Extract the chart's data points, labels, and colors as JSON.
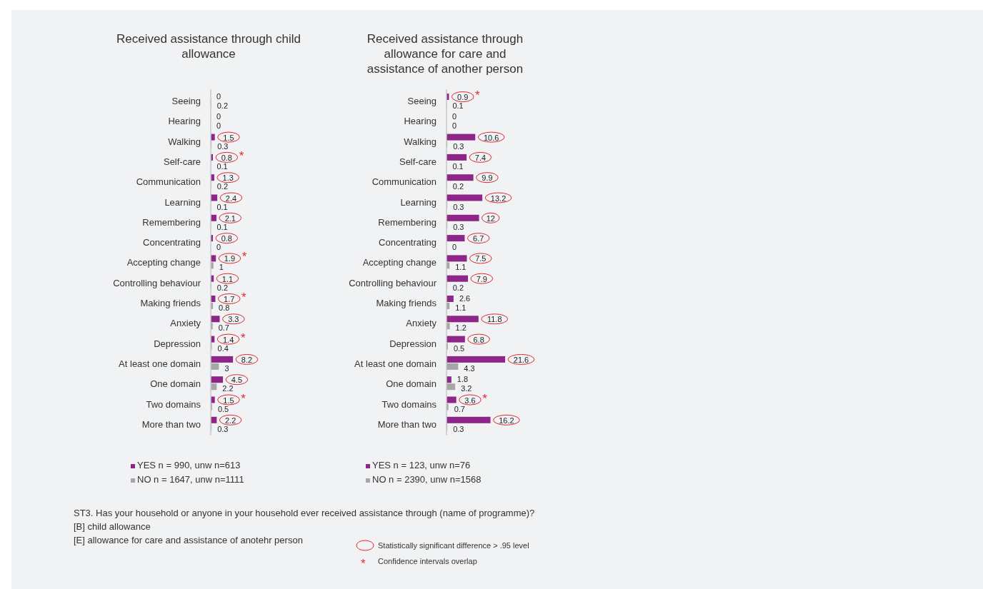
{
  "chart_data": [
    {
      "type": "bar",
      "orientation": "horizontal",
      "title": "Received assistance through child allowance",
      "legend": "bottom",
      "categories": [
        "Seeing",
        "Hearing",
        "Walking",
        "Self-care",
        "Communication",
        "Learning",
        "Remembering",
        "Concentrating",
        "Accepting change",
        "Controlling behaviour",
        "Making friends",
        "Anxiety",
        "Depression",
        "At least one domain",
        "One domain",
        "Two domains",
        "More than two"
      ],
      "series": [
        {
          "name": "YES n = 990, unw n=613",
          "color": "#8e2589",
          "values": [
            0,
            0,
            1.5,
            0.8,
            1.3,
            2.4,
            2.1,
            0.8,
            1.9,
            1.1,
            1.7,
            3.3,
            1.4,
            8.2,
            4.5,
            1.5,
            2.2
          ],
          "value_labels": [
            "0",
            "0",
            null,
            null,
            null,
            null,
            null,
            null,
            null,
            null,
            null,
            null,
            null,
            null,
            null,
            null,
            null
          ]
        },
        {
          "name": "NO n = 1647, unw n=1111",
          "color": "#a6a6a8",
          "values": [
            0.2,
            0,
            0.3,
            0.1,
            0.2,
            0.1,
            0.1,
            0,
            1,
            0.2,
            0.8,
            0.7,
            0.4,
            3,
            2.2,
            0.5,
            0.3
          ],
          "value_labels": [
            "0.2",
            "0",
            "0.3",
            "0.1",
            "0.2",
            "0.1",
            "0.1",
            "0",
            "1",
            "0.2",
            "0.8",
            "0.7",
            "0.4",
            "3",
            "2.2",
            "0.5",
            "0.3"
          ]
        }
      ],
      "annotations": [
        {
          "text": "1.5",
          "x": 1.5,
          "y": "Walking"
        },
        {
          "text": "0.8",
          "x": 0.8,
          "y": "Self-care"
        },
        {
          "text": "1.3",
          "x": 1.3,
          "y": "Communication"
        },
        {
          "text": "2.4",
          "x": 2.4,
          "y": "Learning"
        },
        {
          "text": "2.1",
          "x": 2.1,
          "y": "Remembering"
        },
        {
          "text": "0.8",
          "x": 0.8,
          "y": "Concentrating"
        },
        {
          "text": "1.9",
          "x": 1.9,
          "y": "Accepting change"
        },
        {
          "text": "1.1",
          "x": 1.1,
          "y": "Controlling behaviour"
        },
        {
          "text": "1.7",
          "x": 1.7,
          "y": "Making friends"
        },
        {
          "text": "3.3",
          "x": 3.3,
          "y": "Anxiety"
        },
        {
          "text": "1.4",
          "x": 1.4,
          "y": "Depression"
        },
        {
          "text": "8.2",
          "x": 8.2,
          "y": "At least one domain"
        },
        {
          "text": "4.5",
          "x": 4.5,
          "y": "One domain"
        },
        {
          "text": "1.5",
          "x": 1.5,
          "y": "Two domains"
        },
        {
          "text": "2.2",
          "x": 2.2,
          "y": "More than two"
        },
        {
          "text": "*",
          "x": 0.8,
          "y": "Self-care"
        },
        {
          "text": "*",
          "x": 1.9,
          "y": "Accepting change"
        },
        {
          "text": "*",
          "x": 1.7,
          "y": "Making friends"
        },
        {
          "text": "*",
          "x": 1.4,
          "y": "Depression"
        },
        {
          "text": "*",
          "x": 1.5,
          "y": "Two domains"
        },
        "ST3. Has your household or anyone in your household ever received assistance through (name of programme)?",
        "[B] child allowance",
        "[E] allowance for care and assistance of anotehr person",
        "Statistically significant difference > .95 level",
        "Confidence intervals overlap"
      ]
    },
    {
      "type": "bar",
      "orientation": "horizontal",
      "title": "Received assistance through allowance for care and assistance of another person",
      "legend": "bottom",
      "categories": [
        "Seeing",
        "Hearing",
        "Walking",
        "Self-care",
        "Communication",
        "Learning",
        "Remembering",
        "Concentrating",
        "Accepting change",
        "Controlling behaviour",
        "Making friends",
        "Anxiety",
        "Depression",
        "At least one domain",
        "One domain",
        "Two domains",
        "More than two"
      ],
      "series": [
        {
          "name": "YES n = 123, unw n=76",
          "color": "#8e2589",
          "values": [
            0.9,
            0,
            10.6,
            7.4,
            9.9,
            13.2,
            12,
            6.7,
            7.5,
            7.9,
            2.6,
            11.8,
            6.8,
            21.6,
            1.8,
            3.6,
            16.2
          ],
          "value_labels": [
            null,
            "0",
            null,
            null,
            null,
            null,
            null,
            null,
            null,
            null,
            "2.6",
            null,
            null,
            null,
            "1.8",
            null,
            null
          ]
        },
        {
          "name": "NO n = 2390, unw n=1568",
          "color": "#a6a6a8",
          "values": [
            0.1,
            0,
            0.3,
            0.1,
            0.2,
            0.3,
            0.3,
            0,
            1.1,
            0.2,
            1.1,
            1.2,
            0.5,
            4.3,
            3.2,
            0.7,
            0.3
          ],
          "value_labels": [
            "0.1",
            "0",
            "0.3",
            "0.1",
            "0.2",
            "0.3",
            "0.3",
            "0",
            "1.1",
            "0.2",
            "1.1",
            "1.2",
            "0.5",
            "4.3",
            "3.2",
            "0.7",
            "0.3"
          ]
        }
      ],
      "annotations": [
        {
          "text": "0.9",
          "x": 0.9,
          "y": "Seeing"
        },
        {
          "text": "10.6",
          "x": 10.6,
          "y": "Walking"
        },
        {
          "text": "7.4",
          "x": 7.4,
          "y": "Self-care"
        },
        {
          "text": "9.9",
          "x": 9.9,
          "y": "Communication"
        },
        {
          "text": "13.2",
          "x": 13.2,
          "y": "Learning"
        },
        {
          "text": "12",
          "x": 12,
          "y": "Remembering"
        },
        {
          "text": "6.7",
          "x": 6.7,
          "y": "Concentrating"
        },
        {
          "text": "7.5",
          "x": 7.5,
          "y": "Accepting change"
        },
        {
          "text": "7.9",
          "x": 7.9,
          "y": "Controlling behaviour"
        },
        {
          "text": "11.8",
          "x": 11.8,
          "y": "Anxiety"
        },
        {
          "text": "6.8",
          "x": 6.8,
          "y": "Depression"
        },
        {
          "text": "21.6",
          "x": 21.6,
          "y": "At least one domain"
        },
        {
          "text": "3.6",
          "x": 3.6,
          "y": "Two domains"
        },
        {
          "text": "16.2",
          "x": 16.2,
          "y": "More than two"
        },
        {
          "text": "*",
          "x": 0.9,
          "y": "Seeing"
        },
        {
          "text": "*",
          "x": 3.6,
          "y": "Two domains"
        }
      ]
    }
  ]
}
